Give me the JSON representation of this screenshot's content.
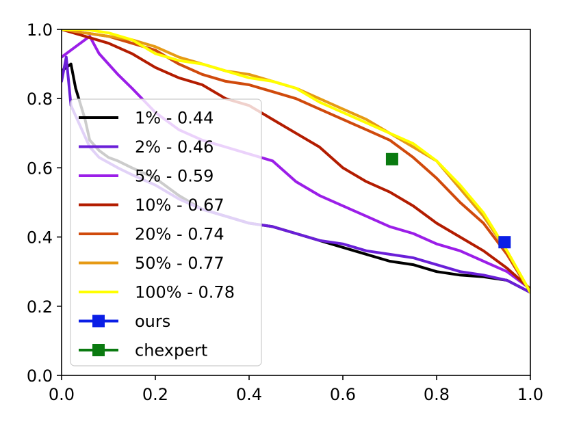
{
  "chart_data": {
    "type": "line",
    "title": "",
    "xlabel": "",
    "ylabel": "",
    "xlim": [
      0.0,
      1.0
    ],
    "ylim": [
      0.0,
      1.0
    ],
    "xticks": [
      "0.0",
      "0.2",
      "0.4",
      "0.6",
      "0.8",
      "1.0"
    ],
    "yticks": [
      "0.0",
      "0.2",
      "0.4",
      "0.6",
      "0.8",
      "1.0"
    ],
    "grid": false,
    "legend_position": "lower-left",
    "series": [
      {
        "name": "1% - 0.44",
        "color": "#000000",
        "points": [
          [
            0.0,
            0.88
          ],
          [
            0.02,
            0.9
          ],
          [
            0.03,
            0.83
          ],
          [
            0.05,
            0.74
          ],
          [
            0.06,
            0.68
          ],
          [
            0.08,
            0.65
          ],
          [
            0.1,
            0.63
          ],
          [
            0.12,
            0.62
          ],
          [
            0.15,
            0.6
          ],
          [
            0.2,
            0.57
          ],
          [
            0.25,
            0.52
          ],
          [
            0.3,
            0.48
          ],
          [
            0.35,
            0.46
          ],
          [
            0.4,
            0.44
          ],
          [
            0.45,
            0.43
          ],
          [
            0.5,
            0.41
          ],
          [
            0.55,
            0.39
          ],
          [
            0.6,
            0.37
          ],
          [
            0.65,
            0.35
          ],
          [
            0.7,
            0.33
          ],
          [
            0.75,
            0.32
          ],
          [
            0.8,
            0.3
          ],
          [
            0.85,
            0.29
          ],
          [
            0.9,
            0.285
          ],
          [
            0.95,
            0.275
          ],
          [
            1.0,
            0.24
          ]
        ]
      },
      {
        "name": "2% - 0.46",
        "color": "#6a1fd8",
        "points": [
          [
            0.0,
            0.85
          ],
          [
            0.01,
            0.92
          ],
          [
            0.02,
            0.78
          ],
          [
            0.04,
            0.72
          ],
          [
            0.06,
            0.66
          ],
          [
            0.08,
            0.63
          ],
          [
            0.12,
            0.6
          ],
          [
            0.15,
            0.58
          ],
          [
            0.2,
            0.55
          ],
          [
            0.25,
            0.51
          ],
          [
            0.3,
            0.48
          ],
          [
            0.35,
            0.46
          ],
          [
            0.4,
            0.44
          ],
          [
            0.45,
            0.43
          ],
          [
            0.5,
            0.41
          ],
          [
            0.55,
            0.39
          ],
          [
            0.6,
            0.38
          ],
          [
            0.65,
            0.36
          ],
          [
            0.7,
            0.35
          ],
          [
            0.75,
            0.34
          ],
          [
            0.8,
            0.32
          ],
          [
            0.85,
            0.3
          ],
          [
            0.9,
            0.29
          ],
          [
            0.95,
            0.275
          ],
          [
            1.0,
            0.24
          ]
        ]
      },
      {
        "name": "5% - 0.59",
        "color": "#9b1ee8",
        "points": [
          [
            0.0,
            0.92
          ],
          [
            0.03,
            0.95
          ],
          [
            0.06,
            0.98
          ],
          [
            0.08,
            0.93
          ],
          [
            0.1,
            0.9
          ],
          [
            0.12,
            0.87
          ],
          [
            0.15,
            0.83
          ],
          [
            0.2,
            0.76
          ],
          [
            0.25,
            0.71
          ],
          [
            0.3,
            0.68
          ],
          [
            0.35,
            0.66
          ],
          [
            0.4,
            0.64
          ],
          [
            0.45,
            0.62
          ],
          [
            0.5,
            0.56
          ],
          [
            0.55,
            0.52
          ],
          [
            0.6,
            0.49
          ],
          [
            0.65,
            0.46
          ],
          [
            0.7,
            0.43
          ],
          [
            0.75,
            0.41
          ],
          [
            0.8,
            0.38
          ],
          [
            0.85,
            0.36
          ],
          [
            0.9,
            0.33
          ],
          [
            0.95,
            0.3
          ],
          [
            1.0,
            0.25
          ]
        ]
      },
      {
        "name": "10% - 0.67",
        "color": "#b31c00",
        "points": [
          [
            0.0,
            1.0
          ],
          [
            0.05,
            0.98
          ],
          [
            0.1,
            0.96
          ],
          [
            0.15,
            0.93
          ],
          [
            0.2,
            0.89
          ],
          [
            0.25,
            0.86
          ],
          [
            0.3,
            0.84
          ],
          [
            0.35,
            0.8
          ],
          [
            0.4,
            0.78
          ],
          [
            0.45,
            0.74
          ],
          [
            0.5,
            0.7
          ],
          [
            0.55,
            0.66
          ],
          [
            0.6,
            0.6
          ],
          [
            0.65,
            0.56
          ],
          [
            0.7,
            0.53
          ],
          [
            0.75,
            0.49
          ],
          [
            0.8,
            0.44
          ],
          [
            0.85,
            0.4
          ],
          [
            0.9,
            0.36
          ],
          [
            0.95,
            0.31
          ],
          [
            1.0,
            0.25
          ]
        ]
      },
      {
        "name": "20% - 0.74",
        "color": "#d04a0c",
        "points": [
          [
            0.0,
            1.0
          ],
          [
            0.05,
            0.99
          ],
          [
            0.1,
            0.98
          ],
          [
            0.15,
            0.96
          ],
          [
            0.2,
            0.94
          ],
          [
            0.25,
            0.9
          ],
          [
            0.3,
            0.87
          ],
          [
            0.35,
            0.85
          ],
          [
            0.4,
            0.84
          ],
          [
            0.45,
            0.82
          ],
          [
            0.5,
            0.8
          ],
          [
            0.55,
            0.77
          ],
          [
            0.6,
            0.74
          ],
          [
            0.65,
            0.71
          ],
          [
            0.7,
            0.68
          ],
          [
            0.75,
            0.63
          ],
          [
            0.8,
            0.57
          ],
          [
            0.85,
            0.5
          ],
          [
            0.9,
            0.44
          ],
          [
            0.95,
            0.35
          ],
          [
            1.0,
            0.24
          ]
        ]
      },
      {
        "name": "50% - 0.77",
        "color": "#e69a14",
        "points": [
          [
            0.0,
            1.0
          ],
          [
            0.05,
            0.99
          ],
          [
            0.1,
            0.98
          ],
          [
            0.15,
            0.97
          ],
          [
            0.2,
            0.95
          ],
          [
            0.25,
            0.92
          ],
          [
            0.3,
            0.9
          ],
          [
            0.35,
            0.88
          ],
          [
            0.4,
            0.87
          ],
          [
            0.45,
            0.85
          ],
          [
            0.5,
            0.83
          ],
          [
            0.55,
            0.8
          ],
          [
            0.6,
            0.77
          ],
          [
            0.65,
            0.74
          ],
          [
            0.7,
            0.7
          ],
          [
            0.75,
            0.66
          ],
          [
            0.8,
            0.62
          ],
          [
            0.85,
            0.54
          ],
          [
            0.9,
            0.46
          ],
          [
            0.95,
            0.36
          ],
          [
            1.0,
            0.24
          ]
        ]
      },
      {
        "name": "100% - 0.78",
        "color": "#ffff00",
        "points": [
          [
            0.0,
            1.0
          ],
          [
            0.05,
            1.0
          ],
          [
            0.1,
            0.99
          ],
          [
            0.15,
            0.97
          ],
          [
            0.2,
            0.93
          ],
          [
            0.25,
            0.91
          ],
          [
            0.3,
            0.9
          ],
          [
            0.35,
            0.88
          ],
          [
            0.4,
            0.86
          ],
          [
            0.45,
            0.85
          ],
          [
            0.5,
            0.83
          ],
          [
            0.55,
            0.79
          ],
          [
            0.6,
            0.76
          ],
          [
            0.65,
            0.73
          ],
          [
            0.7,
            0.7
          ],
          [
            0.75,
            0.67
          ],
          [
            0.8,
            0.62
          ],
          [
            0.85,
            0.55
          ],
          [
            0.9,
            0.47
          ],
          [
            0.95,
            0.36
          ],
          [
            1.0,
            0.24
          ]
        ]
      },
      {
        "name": "ours",
        "color": "#0a1ee6",
        "marker": "square",
        "points": [
          [
            0.945,
            0.385
          ]
        ]
      },
      {
        "name": "chexpert",
        "color": "#0a7a10",
        "marker": "square",
        "points": [
          [
            0.705,
            0.625
          ]
        ]
      }
    ]
  }
}
